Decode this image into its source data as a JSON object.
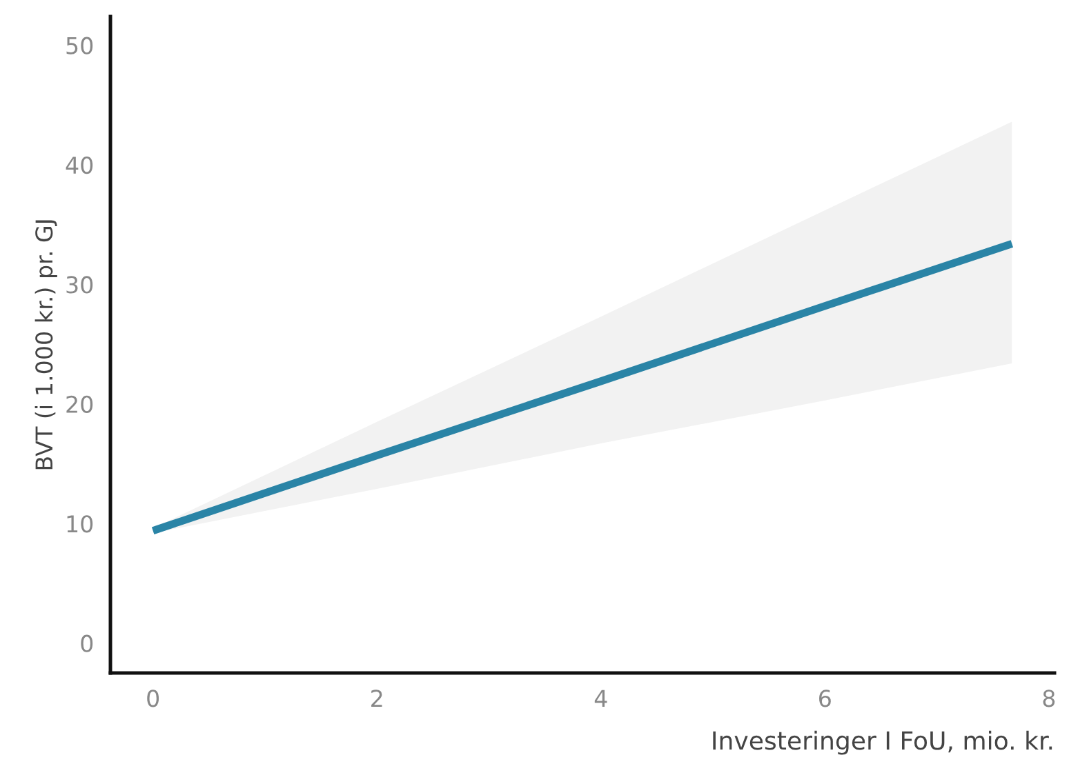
{
  "chart_data": {
    "type": "line",
    "xlabel": "Investeringer I FoU, mio. kr.",
    "ylabel": "BVT (i 1.000 kr.) pr. GJ",
    "x": [
      0,
      2,
      4,
      6,
      7.67
    ],
    "series": [
      {
        "color": "#2a84a6",
        "values": [
          9.4,
          15.7,
          21.9,
          28.2,
          33.4
        ],
        "lower": [
          9.2,
          12.9,
          16.7,
          20.3,
          23.4
        ],
        "upper": [
          9.6,
          18.5,
          27.3,
          36.2,
          43.6
        ]
      }
    ],
    "xlim": [
      -0.38,
      8.05
    ],
    "ylim": [
      -2.5,
      52.4
    ],
    "xticks": [
      0,
      2,
      4,
      6,
      8
    ],
    "yticks": [
      0,
      10,
      20,
      30,
      40,
      50
    ],
    "grid": false,
    "line_style": "solid",
    "marker": "none"
  }
}
